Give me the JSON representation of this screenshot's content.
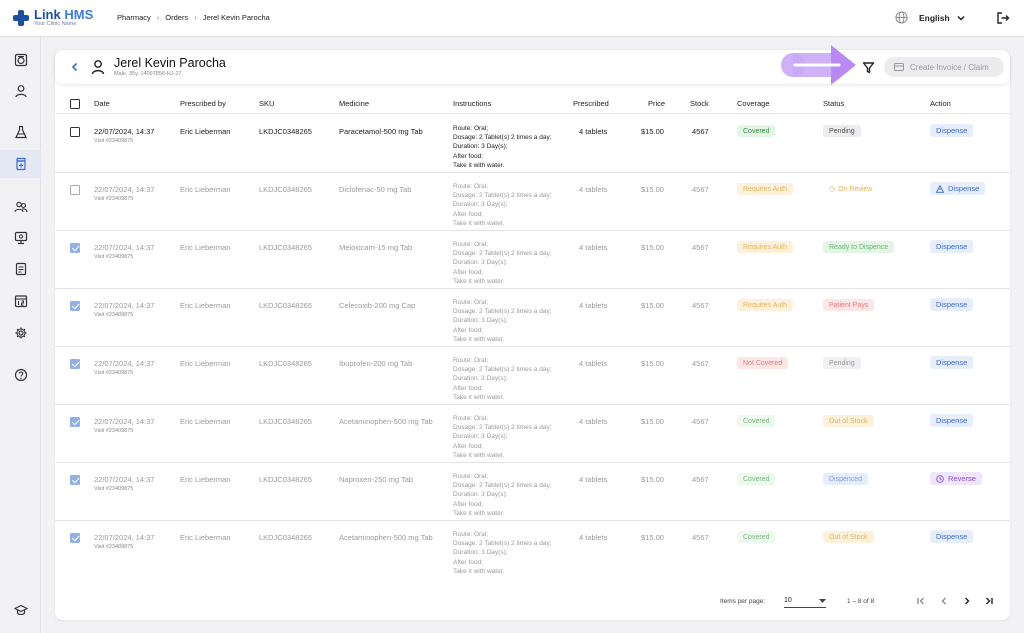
{
  "app": {
    "brand_a": "Link",
    "brand_b": "HMS",
    "brand_sub": "Your Clinic Name"
  },
  "breadcrumb": [
    "Pharmacy",
    "Orders",
    "Jerel Kevin Parocha"
  ],
  "language": "English",
  "patient": {
    "name": "Jerel Kevin Parocha",
    "meta": "Male, 35y, 14097856-HJ-27"
  },
  "create_invoice_label": "Create Invoice / Claim",
  "columns": [
    "Date",
    "Prescribed by",
    "SKU",
    "Medicine",
    "Instructions",
    "Prescribed",
    "Price",
    "Stock",
    "Coverage",
    "Status",
    "Action"
  ],
  "rows": [
    {
      "date": "22/07/2024, 14:37",
      "visit": "Visit #23409875",
      "prescriber": "Eric Lieberman",
      "sku": "LKDJC0348265",
      "medicine": "Paracetamol-500 mg Tab",
      "instr": [
        "Route: Oral;",
        "Dosage: 2 Tablet(s) 2 times a day;",
        "Duration: 3 Day(s);",
        "After food;",
        "Take it with water."
      ],
      "prescribed": "4 tablets",
      "price": "$15.00",
      "stock": "4567",
      "coverage": "Covered",
      "status": "Pending",
      "action": "Dispense",
      "checked": false,
      "faded": false
    },
    {
      "date": "22/07/2024, 14:37",
      "visit": "Visit #23409875",
      "prescriber": "Eric Lieberman",
      "sku": "LKDJC0348265",
      "medicine": "Diclofenac-50 mg Tab",
      "instr": [
        "Route: Oral;",
        "Dosage: 2 Tablet(s) 2 times a day;",
        "Duration: 3 Day(s);",
        "After food;",
        "Take it with water."
      ],
      "prescribed": "4 tablets",
      "price": "$15.00",
      "stock": "4567",
      "coverage": "Requires Auth",
      "status": "On Review",
      "action": "Dispense",
      "checked": false,
      "faded": true
    },
    {
      "date": "22/07/2024, 14:37",
      "visit": "Visit #23409875",
      "prescriber": "Eric Lieberman",
      "sku": "LKDJC0348265",
      "medicine": "Meloxicam-15 mg Tab",
      "instr": [
        "Route: Oral;",
        "Dosage: 2 Tablet(s) 2 times a day;",
        "Duration: 3 Day(s);",
        "After food;",
        "Take it with water."
      ],
      "prescribed": "4 tablets",
      "price": "$15.00",
      "stock": "4567",
      "coverage": "Requires Auth",
      "status": "Ready to Dispence",
      "action": "Dispense",
      "checked": true,
      "faded": true
    },
    {
      "date": "22/07/2024, 14:37",
      "visit": "Visit #23409875",
      "prescriber": "Eric Lieberman",
      "sku": "LKDJC0348265",
      "medicine": "Celecoxib-200 mg Cap",
      "instr": [
        "Route: Oral;",
        "Dosage: 2 Tablet(s) 2 times a day;",
        "Duration: 3 Day(s);",
        "After food;",
        "Take it with water."
      ],
      "prescribed": "4 tablets",
      "price": "$15.00",
      "stock": "4567",
      "coverage": "Requires Auth",
      "status": "Patient Pays",
      "action": "Dispense",
      "checked": true,
      "faded": true
    },
    {
      "date": "22/07/2024, 14:37",
      "visit": "Visit #23409875",
      "prescriber": "Eric Lieberman",
      "sku": "LKDJC0348265",
      "medicine": "Ibuprofen-200 mg Tab",
      "instr": [
        "Route: Oral;",
        "Dosage: 2 Tablet(s) 2 times a day;",
        "Duration: 3 Day(s);",
        "After food;",
        "Take it with water."
      ],
      "prescribed": "4 tablets",
      "price": "$15.00",
      "stock": "4567",
      "coverage": "Not Covered",
      "status": "Pending",
      "action": "Dispense",
      "checked": true,
      "faded": true
    },
    {
      "date": "22/07/2024, 14:37",
      "visit": "Visit #23409875",
      "prescriber": "Eric Lieberman",
      "sku": "LKDJC0348265",
      "medicine": "Acetaminophen-500 mg Tab",
      "instr": [
        "Route: Oral;",
        "Dosage: 2 Tablet(s) 2 times a day;",
        "Duration: 3 Day(s);",
        "After food;",
        "Take it with water."
      ],
      "prescribed": "4 tablets",
      "price": "$15.00",
      "stock": "4567",
      "coverage": "Covered",
      "status": "Out of Stock",
      "action": "Dispense",
      "checked": true,
      "faded": true
    },
    {
      "date": "22/07/2024, 14:37",
      "visit": "Visit #23409875",
      "prescriber": "Eric Lieberman",
      "sku": "LKDJC0348265",
      "medicine": "Naproxen-250 mg Tab",
      "instr": [
        "Route: Oral;",
        "Dosage: 2 Tablet(s) 2 times a day;",
        "Duration: 3 Day(s);",
        "After food;",
        "Take it with water."
      ],
      "prescribed": "4 tablets",
      "price": "$15.00",
      "stock": "4567",
      "coverage": "Covered",
      "status": "Dispenced",
      "action": "Reverse",
      "checked": true,
      "faded": true
    },
    {
      "date": "22/07/2024, 14:37",
      "visit": "Visit #23409875",
      "prescriber": "Eric Lieberman",
      "sku": "LKDJC0348265",
      "medicine": "Acetaminophen-500 mg Tab",
      "instr": [
        "Route: Oral;",
        "Dosage: 2 Tablet(s) 2 times a day;",
        "Duration: 3 Day(s);",
        "After food;",
        "Take it with water."
      ],
      "prescribed": "4 tablets",
      "price": "$15.00",
      "stock": "4567",
      "coverage": "Covered",
      "status": "Out of Stock",
      "action": "Dispense",
      "checked": true,
      "faded": true
    }
  ],
  "pagination": {
    "items_per_page_label": "Items per page:",
    "items_per_page": "10",
    "range": "1 – 8 of 8"
  },
  "colors": {
    "brand": "#1b4fa0",
    "accent": "#3a6ad8",
    "highlight_arrow": "#b98af5"
  }
}
